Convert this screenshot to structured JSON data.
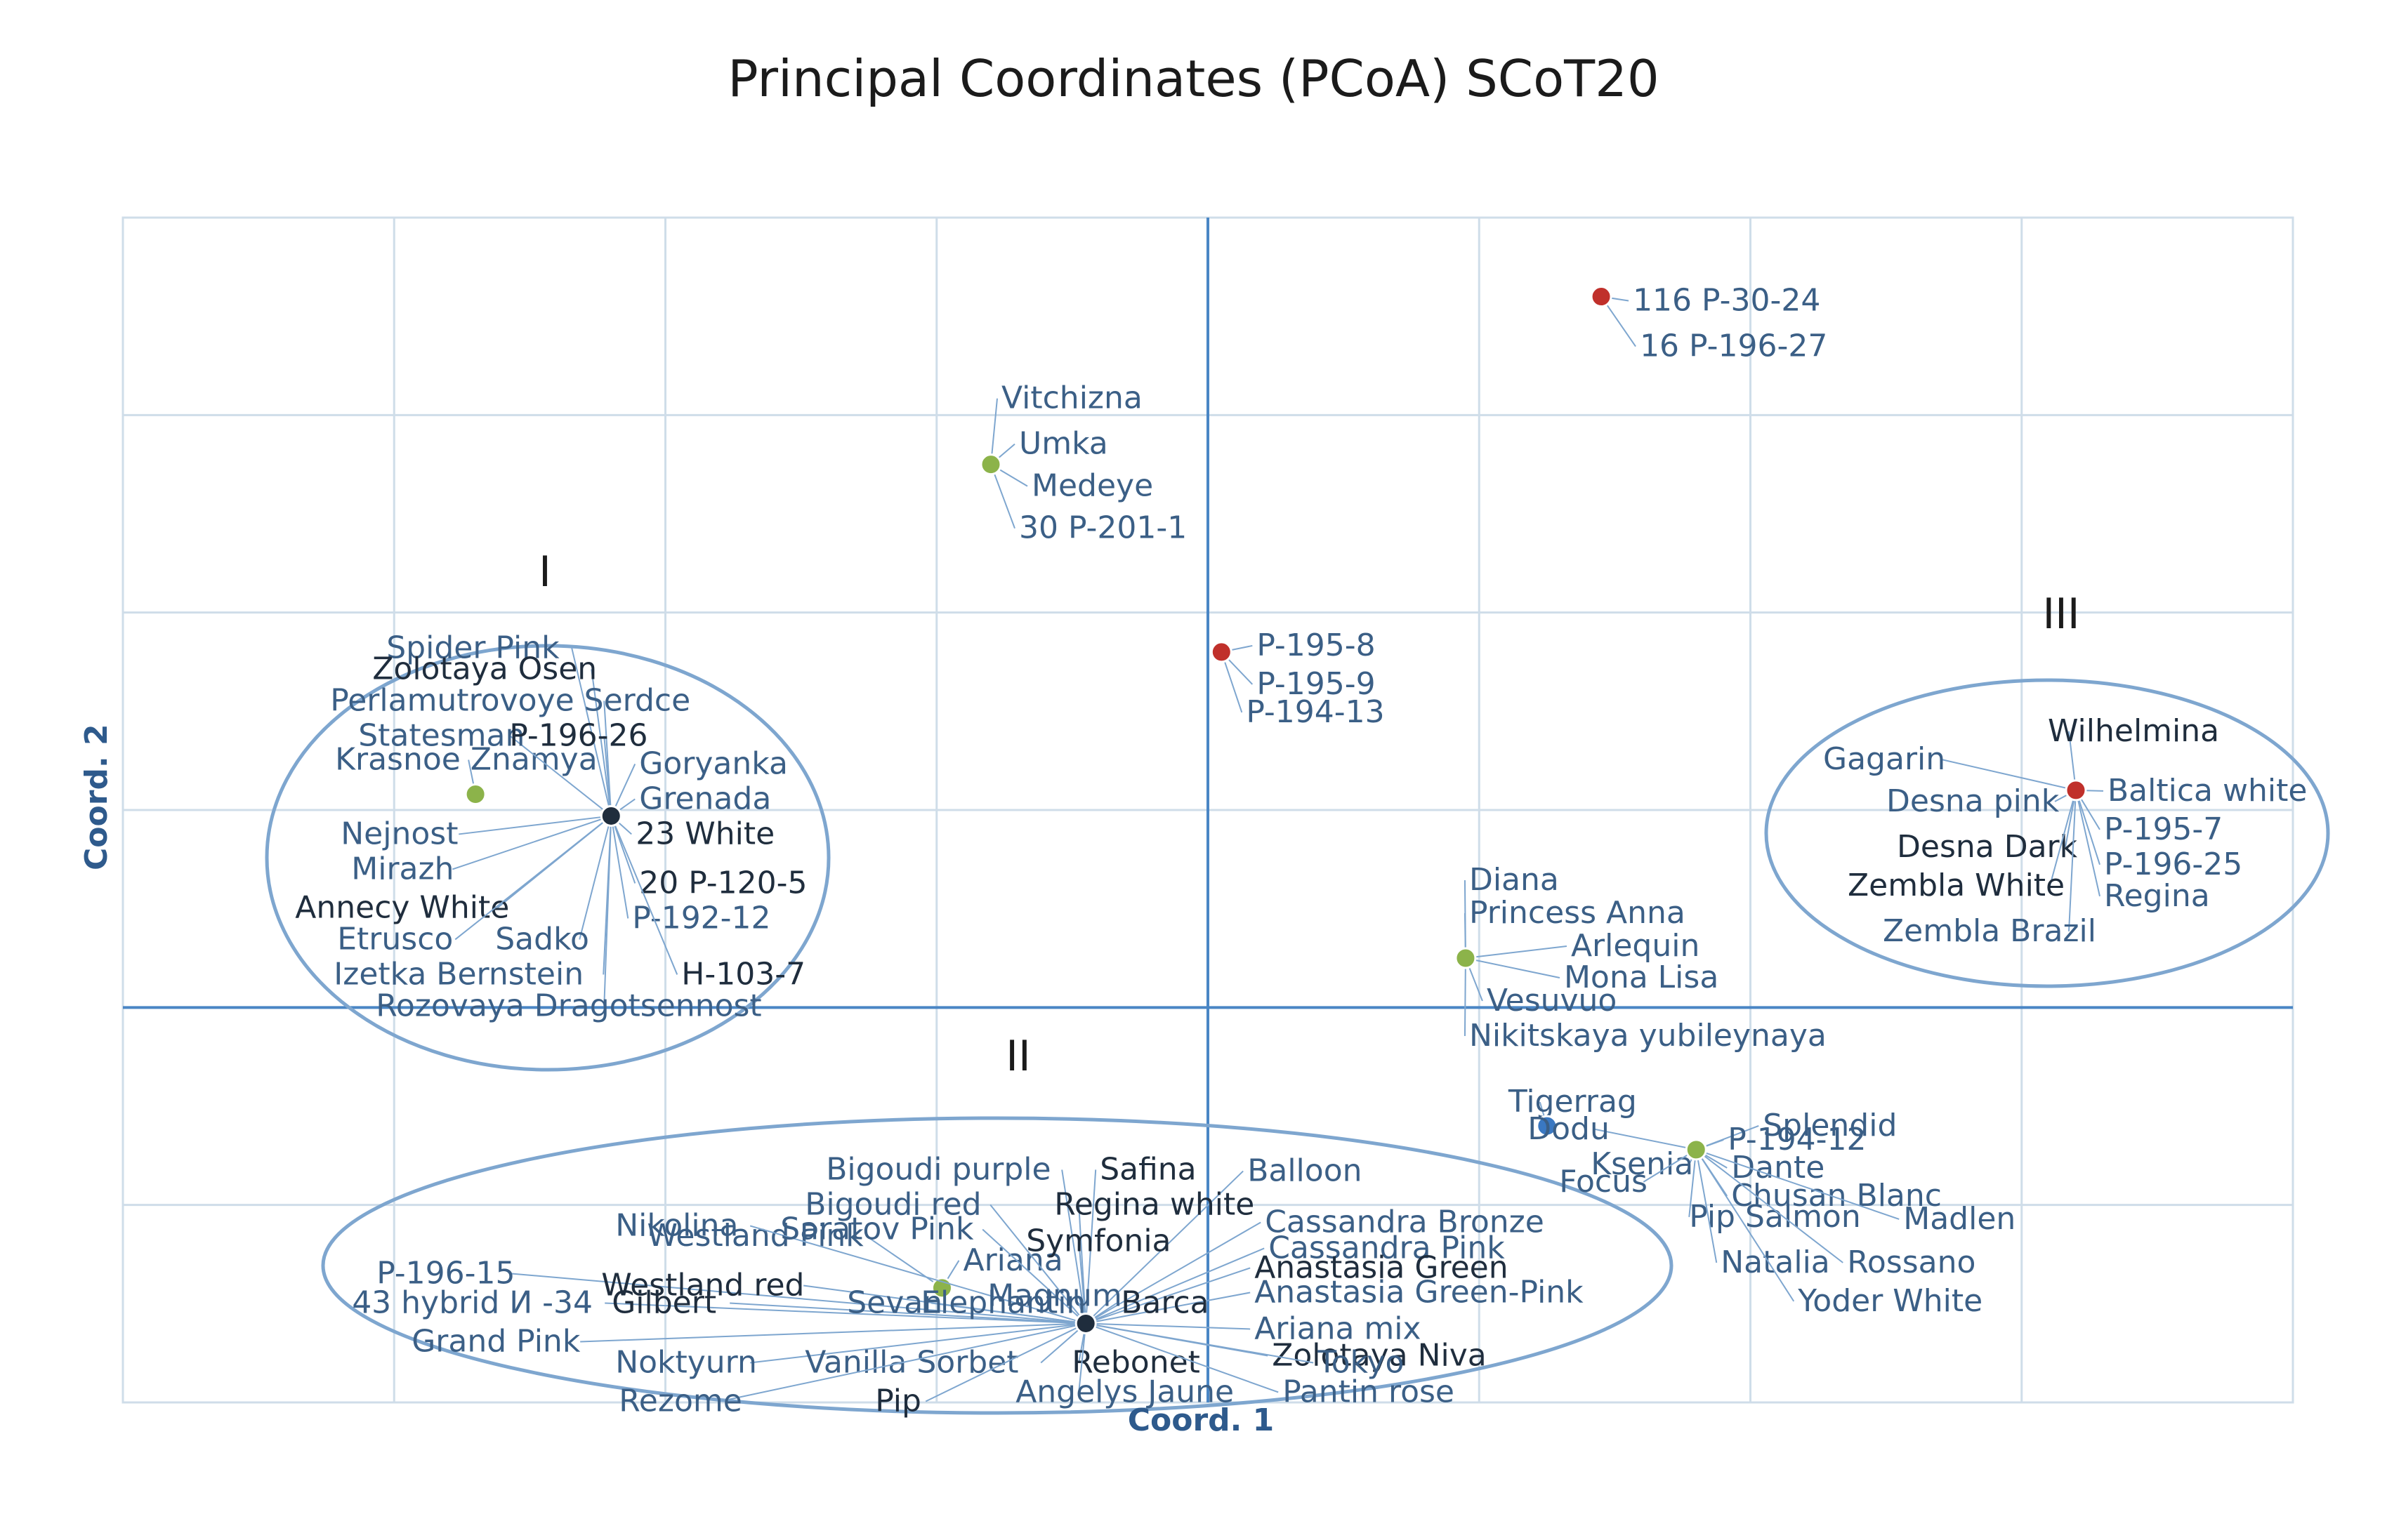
{
  "chart_data": {
    "type": "scatter",
    "title": "Principal Coordinates (PCoA) SCoT20",
    "xlabel": "Coord. 1",
    "ylabel": "Coord. 2",
    "xlim": [
      -4,
      4
    ],
    "ylim": [
      -2,
      4
    ],
    "grid": true,
    "colors": {
      "grid": "#cfdde9",
      "axis": "#4a86c5",
      "ellipse": "#7ea6cf",
      "label": "#3b5f86",
      "leader": "#7ea6cf",
      "dark_label": "#1f2d3d"
    },
    "points": [
      {
        "x": 1.45,
        "y": 3.6,
        "color": "#c0302b",
        "labels": [
          "116 P-30-24",
          "16 P-196-27"
        ]
      },
      {
        "x": -0.8,
        "y": 2.75,
        "color": "#8cb34a",
        "labels": [
          "Vitchizna",
          "Umka",
          "Medeye",
          "30 P-201-1"
        ]
      },
      {
        "x": 0.05,
        "y": 1.8,
        "color": "#c0302b",
        "labels": [
          "P-195-8",
          "P-195-9",
          "P-194-13"
        ]
      },
      {
        "x": -2.7,
        "y": 1.08,
        "color": "#8cb34a",
        "labels": [
          "Krasnoe Znamya"
        ]
      },
      {
        "x": -2.2,
        "y": 0.97,
        "color": "#1f2d3d",
        "labels": [
          "Spider Pink",
          "Zolotaya Osen",
          "Perlamutrovoye Serdce",
          "Statesman",
          "P-196-26",
          "Goryanka",
          "Grenada",
          "23 White",
          "Nejnost",
          "Mirazh",
          "Annecy White",
          "Etrusco",
          "Sadko",
          "20 P-120-5",
          "P-192-12",
          "Izetka Bernstein",
          "H-103-7",
          "Rozovaya Dragotsennost"
        ]
      },
      {
        "x": 0.95,
        "y": 0.25,
        "color": "#8cb34a",
        "labels": [
          "Diana",
          "Princess Anna",
          "Arlequin",
          "Mona Lisa",
          "Vesuvuo",
          "Nikitskaya yubileynaya"
        ]
      },
      {
        "x": 3.2,
        "y": 1.1,
        "color": "#c0302b",
        "labels": [
          "Gagarin",
          "Wilhelmina",
          "Desna pink",
          "Baltica white",
          "Desna Dark",
          "P-195-7",
          "P-196-25",
          "Zembla White",
          "Regina",
          "Zembla Brazil"
        ]
      },
      {
        "x": 1.25,
        "y": -0.6,
        "color": "#3a78c2",
        "labels": [
          "Tigerrag"
        ]
      },
      {
        "x": 1.8,
        "y": -0.72,
        "color": "#8cb34a",
        "labels": [
          "Dodu",
          "Splendid",
          "Ksenia",
          "P-194-12",
          "Focus",
          "Dante",
          "Chusan Blanc",
          "Pip Salmon",
          "Madlen",
          "Natalia",
          "Rossano",
          "Yoder White"
        ]
      },
      {
        "x": -0.98,
        "y": -1.42,
        "color": "#8cb34a",
        "labels": [
          "Westland Pink",
          "Ariana"
        ]
      },
      {
        "x": -0.45,
        "y": -1.6,
        "color": "#1f2d3d",
        "labels": [
          "Bigoudi purple",
          "Safina",
          "Balloon",
          "Bigoudi red",
          "Regina white",
          "Nikolina",
          "Saratov Pink",
          "Symfonia",
          "Cassandra Bronze",
          "Cassandra Pink",
          "Anastasia Green",
          "Anastasia Green-Pink",
          "P-196-15",
          "Westland red",
          "Magnum",
          "43 hybrid И -34",
          "Gilbert",
          "Sevan",
          "Elephantin",
          "Barca",
          "Ariana mix",
          "Grand Pink",
          "Zolotaya Niva",
          "Noktyurn",
          "Vanilla Sorbet",
          "Rebonet",
          "Tokyo",
          "Rezome",
          "Pip",
          "Angelys Jaune",
          "Pantin rose"
        ]
      }
    ],
    "group_labels": [
      "I",
      "II",
      "III"
    ]
  }
}
